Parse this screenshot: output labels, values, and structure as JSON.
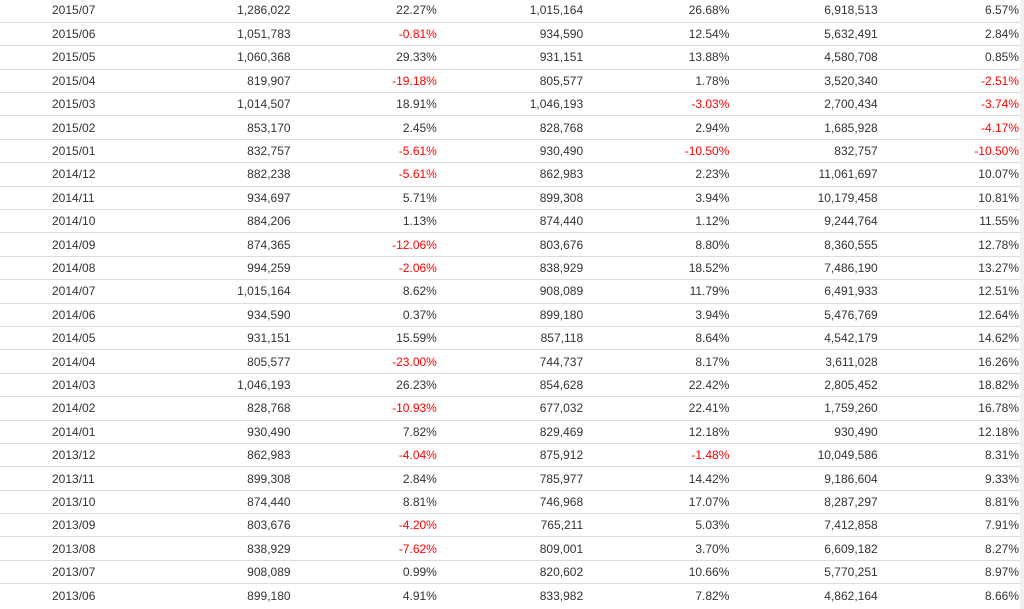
{
  "table": {
    "rows": [
      {
        "period": "2015/07",
        "v1": "1,286,022",
        "p1": "22.27%",
        "v2": "1,015,164",
        "p2": "26.68%",
        "v3": "6,918,513",
        "p3": "6.57%"
      },
      {
        "period": "2015/06",
        "v1": "1,051,783",
        "p1": "-0.81%",
        "v2": "934,590",
        "p2": "12.54%",
        "v3": "5,632,491",
        "p3": "2.84%"
      },
      {
        "period": "2015/05",
        "v1": "1,060,368",
        "p1": "29.33%",
        "v2": "931,151",
        "p2": "13.88%",
        "v3": "4,580,708",
        "p3": "0.85%"
      },
      {
        "period": "2015/04",
        "v1": "819,907",
        "p1": "-19.18%",
        "v2": "805,577",
        "p2": "1.78%",
        "v3": "3,520,340",
        "p3": "-2.51%"
      },
      {
        "period": "2015/03",
        "v1": "1,014,507",
        "p1": "18.91%",
        "v2": "1,046,193",
        "p2": "-3.03%",
        "v3": "2,700,434",
        "p3": "-3.74%"
      },
      {
        "period": "2015/02",
        "v1": "853,170",
        "p1": "2.45%",
        "v2": "828,768",
        "p2": "2.94%",
        "v3": "1,685,928",
        "p3": "-4.17%"
      },
      {
        "period": "2015/01",
        "v1": "832,757",
        "p1": "-5.61%",
        "v2": "930,490",
        "p2": "-10.50%",
        "v3": "832,757",
        "p3": "-10.50%"
      },
      {
        "period": "2014/12",
        "v1": "882,238",
        "p1": "-5.61%",
        "v2": "862,983",
        "p2": "2.23%",
        "v3": "11,061,697",
        "p3": "10.07%"
      },
      {
        "period": "2014/11",
        "v1": "934,697",
        "p1": "5.71%",
        "v2": "899,308",
        "p2": "3.94%",
        "v3": "10,179,458",
        "p3": "10.81%"
      },
      {
        "period": "2014/10",
        "v1": "884,206",
        "p1": "1.13%",
        "v2": "874,440",
        "p2": "1.12%",
        "v3": "9,244,764",
        "p3": "11.55%"
      },
      {
        "period": "2014/09",
        "v1": "874,365",
        "p1": "-12.06%",
        "v2": "803,676",
        "p2": "8.80%",
        "v3": "8,360,555",
        "p3": "12.78%"
      },
      {
        "period": "2014/08",
        "v1": "994,259",
        "p1": "-2.06%",
        "v2": "838,929",
        "p2": "18.52%",
        "v3": "7,486,190",
        "p3": "13.27%"
      },
      {
        "period": "2014/07",
        "v1": "1,015,164",
        "p1": "8.62%",
        "v2": "908,089",
        "p2": "11.79%",
        "v3": "6,491,933",
        "p3": "12.51%"
      },
      {
        "period": "2014/06",
        "v1": "934,590",
        "p1": "0.37%",
        "v2": "899,180",
        "p2": "3.94%",
        "v3": "5,476,769",
        "p3": "12.64%"
      },
      {
        "period": "2014/05",
        "v1": "931,151",
        "p1": "15.59%",
        "v2": "857,118",
        "p2": "8.64%",
        "v3": "4,542,179",
        "p3": "14.62%"
      },
      {
        "period": "2014/04",
        "v1": "805,577",
        "p1": "-23.00%",
        "v2": "744,737",
        "p2": "8.17%",
        "v3": "3,611,028",
        "p3": "16.26%"
      },
      {
        "period": "2014/03",
        "v1": "1,046,193",
        "p1": "26.23%",
        "v2": "854,628",
        "p2": "22.42%",
        "v3": "2,805,452",
        "p3": "18.82%"
      },
      {
        "period": "2014/02",
        "v1": "828,768",
        "p1": "-10.93%",
        "v2": "677,032",
        "p2": "22.41%",
        "v3": "1,759,260",
        "p3": "16.78%"
      },
      {
        "period": "2014/01",
        "v1": "930,490",
        "p1": "7.82%",
        "v2": "829,469",
        "p2": "12.18%",
        "v3": "930,490",
        "p3": "12.18%"
      },
      {
        "period": "2013/12",
        "v1": "862,983",
        "p1": "-4.04%",
        "v2": "875,912",
        "p2": "-1.48%",
        "v3": "10,049,586",
        "p3": "8.31%"
      },
      {
        "period": "2013/11",
        "v1": "899,308",
        "p1": "2.84%",
        "v2": "785,977",
        "p2": "14.42%",
        "v3": "9,186,604",
        "p3": "9.33%"
      },
      {
        "period": "2013/10",
        "v1": "874,440",
        "p1": "8.81%",
        "v2": "746,968",
        "p2": "17.07%",
        "v3": "8,287,297",
        "p3": "8.81%"
      },
      {
        "period": "2013/09",
        "v1": "803,676",
        "p1": "-4.20%",
        "v2": "765,211",
        "p2": "5.03%",
        "v3": "7,412,858",
        "p3": "7.91%"
      },
      {
        "period": "2013/08",
        "v1": "838,929",
        "p1": "-7.62%",
        "v2": "809,001",
        "p2": "3.70%",
        "v3": "6,609,182",
        "p3": "8.27%"
      },
      {
        "period": "2013/07",
        "v1": "908,089",
        "p1": "0.99%",
        "v2": "820,602",
        "p2": "10.66%",
        "v3": "5,770,251",
        "p3": "8.97%"
      },
      {
        "period": "2013/06",
        "v1": "899,180",
        "p1": "4.91%",
        "v2": "833,982",
        "p2": "7.82%",
        "v3": "4,862,164",
        "p3": "8.66%"
      }
    ]
  },
  "colors": {
    "text": "#333333",
    "negative": "#ff0000",
    "row_border": "#dcdcdc"
  }
}
